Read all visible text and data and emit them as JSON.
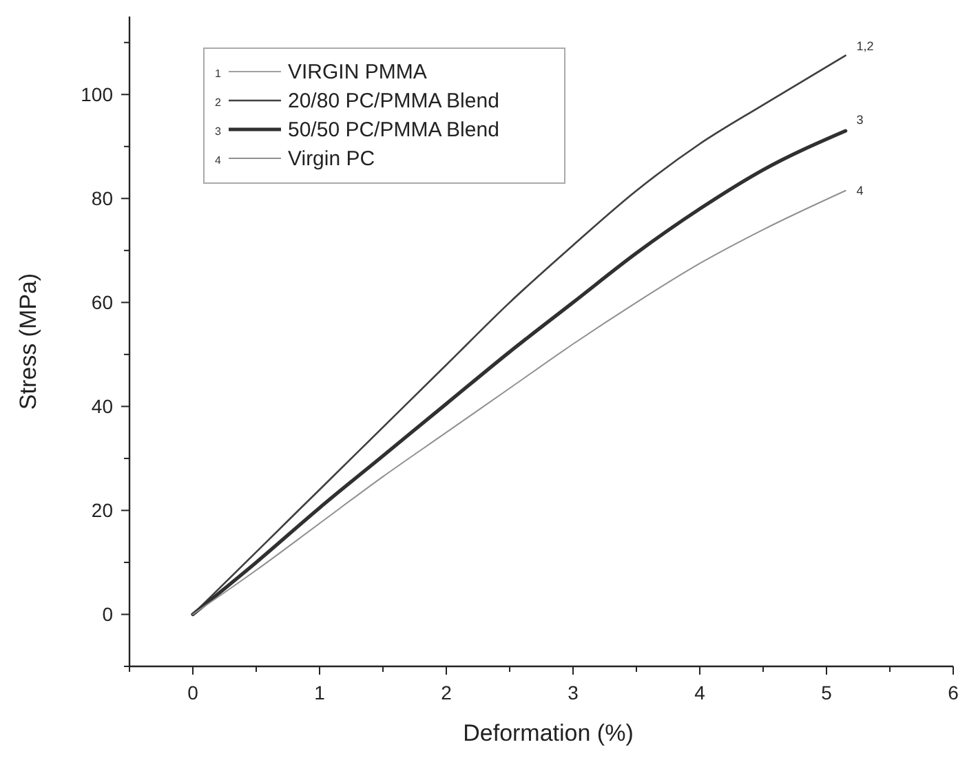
{
  "chart_data": {
    "type": "line",
    "xlabel": "Deformation (%)",
    "ylabel": "Stress (MPa)",
    "xlim": [
      -0.5,
      6
    ],
    "xticks": [
      0,
      1,
      2,
      3,
      4,
      5,
      6
    ],
    "ylim": [
      -10,
      115
    ],
    "yticks": [
      0,
      20,
      40,
      60,
      80,
      100
    ],
    "grid": false,
    "legend": "top left",
    "line_style": "solid",
    "series": [
      {
        "name": "VIRGIN PMMA",
        "color": "#a0a0a0",
        "x": [
          0,
          0.5,
          1,
          1.5,
          2,
          2.5,
          3,
          3.5,
          4,
          4.5,
          5.15
        ],
        "values": [
          0,
          12,
          24,
          36,
          48,
          60,
          71,
          81.5,
          90.5,
          98,
          107.5
        ]
      },
      {
        "name": "20/80 PC/PMMA Blend",
        "color": "#404040",
        "x": [
          0,
          0.5,
          1,
          1.5,
          2,
          2.5,
          3,
          3.5,
          4,
          4.5,
          5.15
        ],
        "values": [
          0,
          12,
          24,
          36,
          48,
          60,
          71,
          81.5,
          90.5,
          98,
          107.5
        ]
      },
      {
        "name": "50/50 PC/PMMA Blend",
        "color": "#303030",
        "x": [
          0,
          0.5,
          1,
          1.5,
          2,
          2.5,
          3,
          3.5,
          4,
          4.5,
          5.15
        ],
        "values": [
          0,
          10,
          20.5,
          30.5,
          40.5,
          50.5,
          60,
          69.5,
          78,
          85.5,
          93
        ]
      },
      {
        "name": "Virgin PC",
        "color": "#909090",
        "x": [
          0,
          0.5,
          1,
          1.5,
          2,
          2.5,
          3,
          3.5,
          4,
          4.5,
          5.15
        ],
        "values": [
          0,
          8.5,
          17.5,
          26.5,
          35,
          43.5,
          52,
          60,
          67.5,
          74,
          81.5
        ]
      }
    ],
    "annotations": [
      "1,2",
      "3",
      "4",
      "1",
      "2",
      "3",
      "4"
    ]
  }
}
